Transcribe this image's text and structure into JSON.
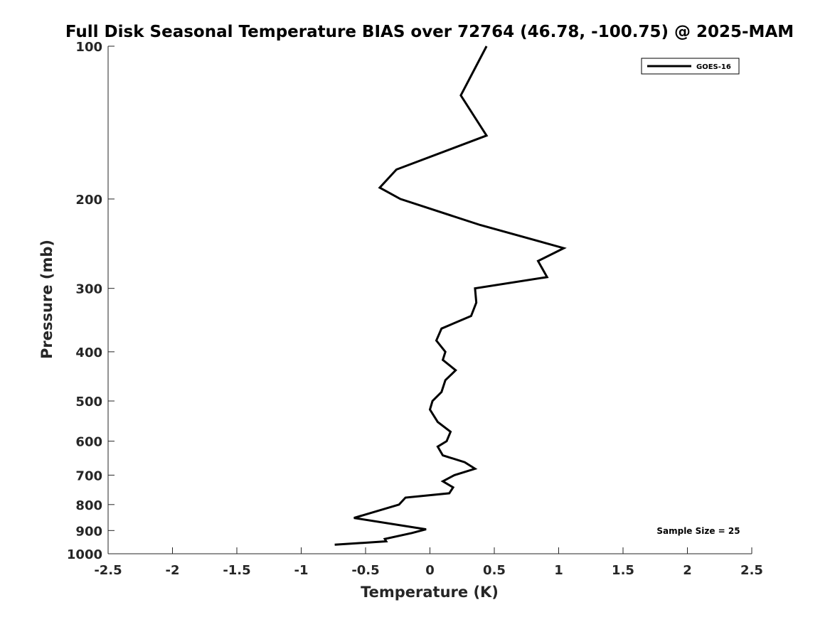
{
  "chart_data": {
    "type": "line",
    "title": "Full Disk Seasonal Temperature BIAS over 72764 (46.78, -100.75) @ 2025-MAM",
    "xlabel": "Temperature (K)",
    "ylabel": "Pressure (mb)",
    "xlim": [
      -2.5,
      2.5
    ],
    "ylim": [
      100,
      1000
    ],
    "yscale": "log",
    "y_reversed": true,
    "xticks": [
      -2.5,
      -2,
      -1.5,
      -1,
      -0.5,
      0,
      0.5,
      1,
      1.5,
      2,
      2.5
    ],
    "xtick_labels": [
      "-2.5",
      "-2",
      "-1.5",
      "-1",
      "-0.5",
      "0",
      "0.5",
      "1",
      "1.5",
      "2",
      "2.5"
    ],
    "yticks": [
      100,
      200,
      300,
      400,
      500,
      600,
      700,
      800,
      900,
      1000
    ],
    "ytick_labels": [
      "100",
      "200",
      "300",
      "400",
      "500",
      "600",
      "700",
      "800",
      "900",
      "1000"
    ],
    "grid": false,
    "legend_position": "top-right",
    "annotation": "Sample Size = 25",
    "series": [
      {
        "name": "GOES-16",
        "color": "#000000",
        "points": [
          {
            "x": 0.44,
            "p": 100
          },
          {
            "x": 0.24,
            "p": 125
          },
          {
            "x": 0.44,
            "p": 150
          },
          {
            "x": -0.26,
            "p": 175
          },
          {
            "x": -0.39,
            "p": 190
          },
          {
            "x": -0.23,
            "p": 200
          },
          {
            "x": 0.39,
            "p": 225
          },
          {
            "x": 1.04,
            "p": 250
          },
          {
            "x": 0.84,
            "p": 265
          },
          {
            "x": 0.91,
            "p": 285
          },
          {
            "x": 0.35,
            "p": 300
          },
          {
            "x": 0.36,
            "p": 320
          },
          {
            "x": 0.32,
            "p": 340
          },
          {
            "x": 0.09,
            "p": 360
          },
          {
            "x": 0.05,
            "p": 380
          },
          {
            "x": 0.12,
            "p": 400
          },
          {
            "x": 0.1,
            "p": 415
          },
          {
            "x": 0.2,
            "p": 435
          },
          {
            "x": 0.12,
            "p": 455
          },
          {
            "x": 0.09,
            "p": 480
          },
          {
            "x": 0.02,
            "p": 500
          },
          {
            "x": 0.0,
            "p": 520
          },
          {
            "x": 0.06,
            "p": 550
          },
          {
            "x": 0.16,
            "p": 575
          },
          {
            "x": 0.13,
            "p": 600
          },
          {
            "x": 0.06,
            "p": 615
          },
          {
            "x": 0.1,
            "p": 640
          },
          {
            "x": 0.27,
            "p": 660
          },
          {
            "x": 0.35,
            "p": 680
          },
          {
            "x": 0.19,
            "p": 700
          },
          {
            "x": 0.1,
            "p": 720
          },
          {
            "x": 0.18,
            "p": 740
          },
          {
            "x": 0.15,
            "p": 760
          },
          {
            "x": -0.19,
            "p": 775
          },
          {
            "x": -0.24,
            "p": 800
          },
          {
            "x": -0.59,
            "p": 850
          },
          {
            "x": -0.03,
            "p": 895
          },
          {
            "x": -0.14,
            "p": 910
          },
          {
            "x": -0.35,
            "p": 935
          },
          {
            "x": -0.34,
            "p": 945
          },
          {
            "x": -0.74,
            "p": 960
          }
        ]
      }
    ]
  }
}
